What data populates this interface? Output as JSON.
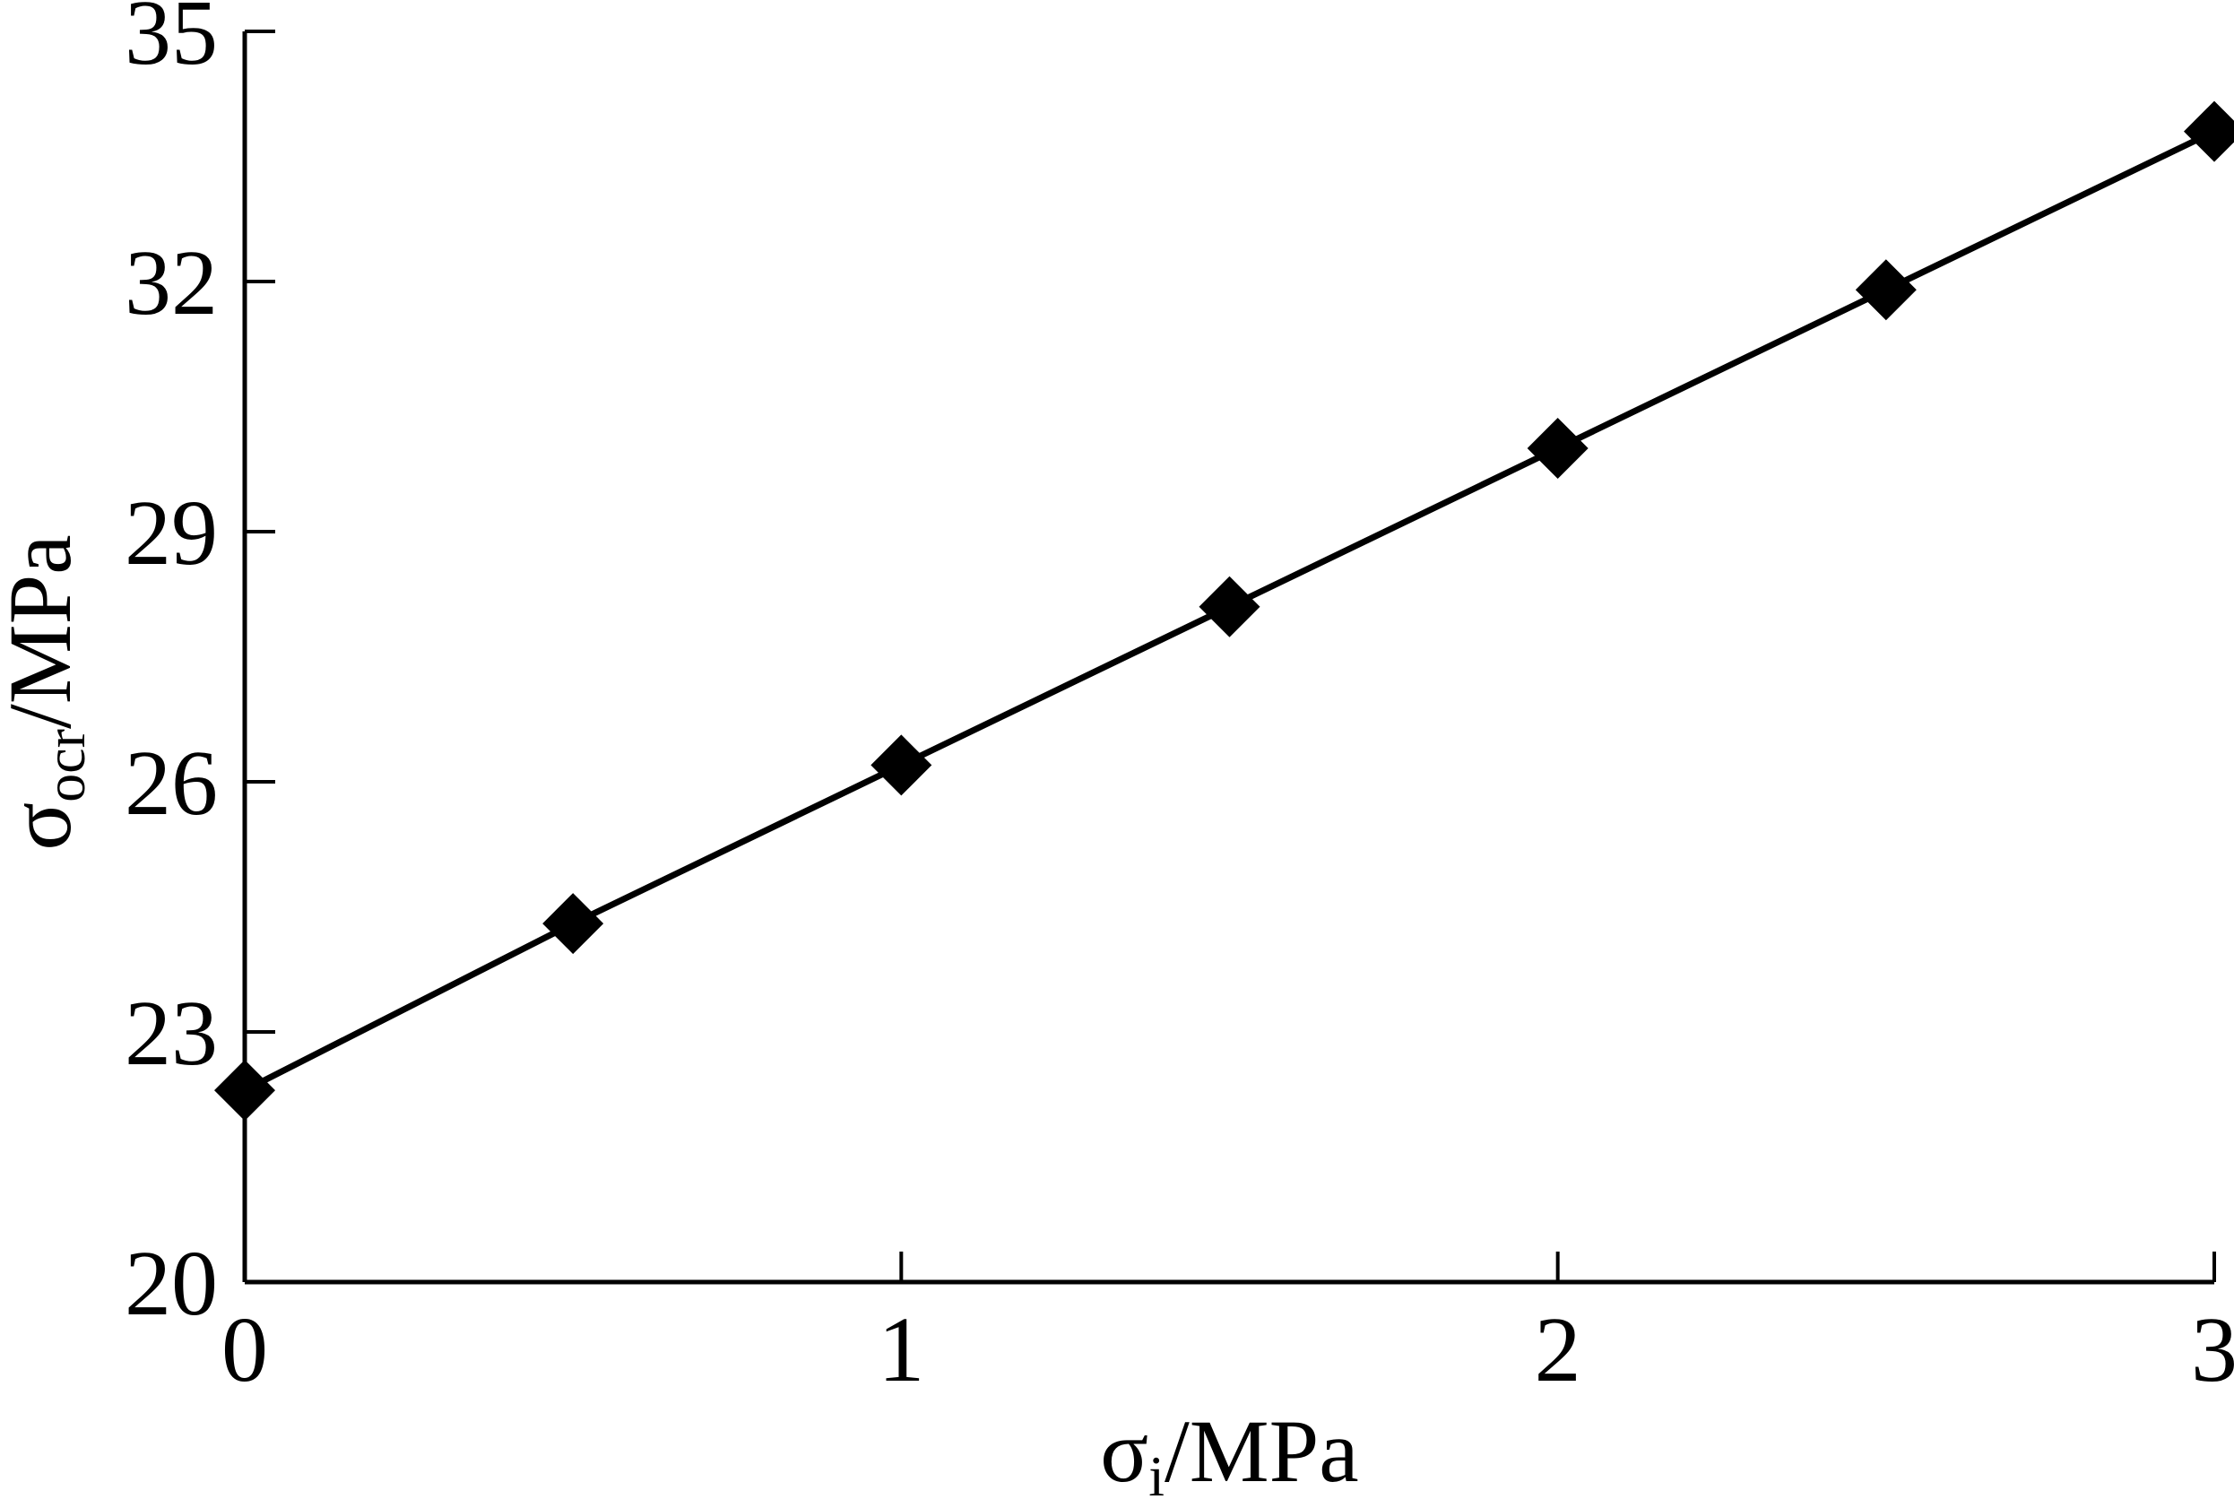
{
  "chart_data": {
    "type": "line",
    "title": "",
    "xlabel": {
      "base": "σ",
      "subscript": "i",
      "unit": "/MPa"
    },
    "ylabel": {
      "base": "σ",
      "subscript": "ocr",
      "unit": "/MPa"
    },
    "xlim": [
      0,
      3
    ],
    "ylim": [
      20,
      35
    ],
    "xticks": [
      0,
      1,
      2,
      3
    ],
    "xtick_labels": [
      "0",
      "1",
      "2",
      "3"
    ],
    "yticks": [
      20,
      23,
      26,
      29,
      32,
      35
    ],
    "ytick_labels": [
      "20",
      "23",
      "26",
      "29",
      "32",
      "35"
    ],
    "grid": false,
    "legend": "none",
    "series": [
      {
        "marker": "diamond",
        "color": "#000000",
        "x": [
          0,
          0.5,
          1,
          1.5,
          2,
          2.5,
          3
        ],
        "y": [
          22.3,
          24.3,
          26.2,
          28.1,
          30.0,
          31.9,
          33.8
        ]
      }
    ]
  }
}
